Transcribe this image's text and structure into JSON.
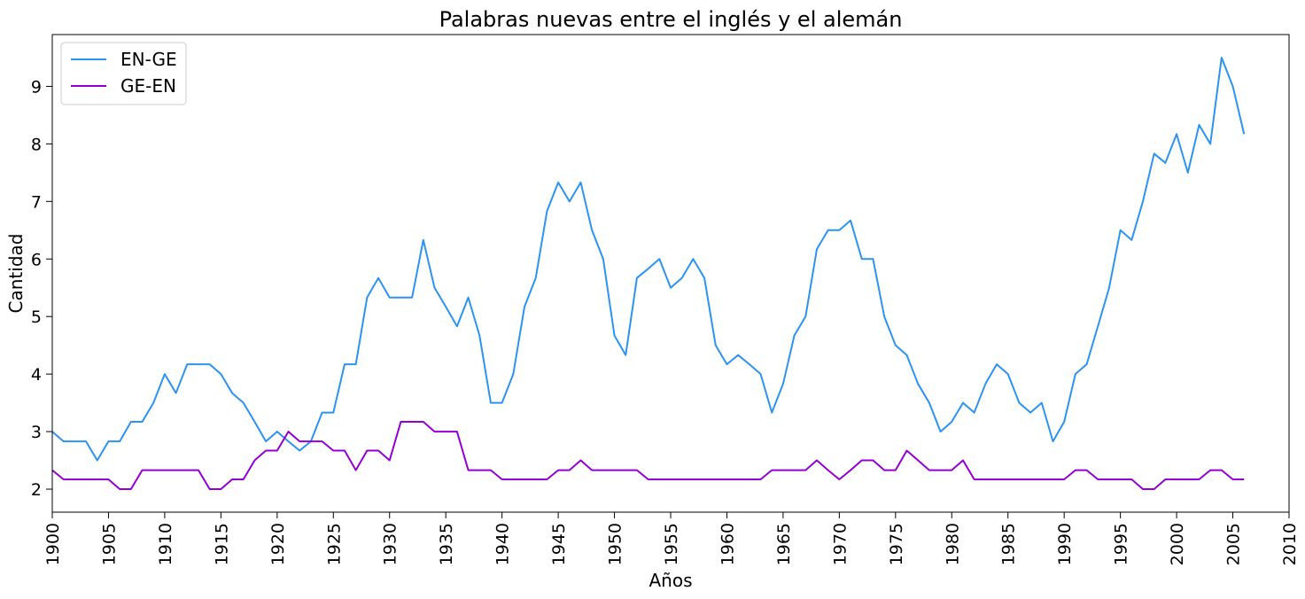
{
  "chart_data": {
    "type": "line",
    "title": "Palabras nuevas entre el inglés y el alemán",
    "xlabel": "Años",
    "ylabel": "Cantidad",
    "xlim": [
      1900,
      2010
    ],
    "ylim": [
      1.6,
      9.9
    ],
    "xticks": [
      1900,
      1905,
      1910,
      1915,
      1920,
      1925,
      1930,
      1935,
      1940,
      1945,
      1950,
      1955,
      1960,
      1965,
      1970,
      1975,
      1980,
      1985,
      1990,
      1995,
      2000,
      2005,
      2010
    ],
    "yticks": [
      2,
      3,
      4,
      5,
      6,
      7,
      8,
      9
    ],
    "grid": false,
    "legend": "top-left",
    "series": [
      {
        "name": "EN-GE",
        "color": "#2b93f0",
        "x": [
          1900,
          1901,
          1902,
          1903,
          1904,
          1905,
          1906,
          1907,
          1908,
          1909,
          1910,
          1911,
          1912,
          1913,
          1914,
          1915,
          1916,
          1917,
          1918,
          1919,
          1920,
          1921,
          1922,
          1923,
          1924,
          1925,
          1926,
          1927,
          1928,
          1929,
          1930,
          1931,
          1932,
          1933,
          1934,
          1935,
          1936,
          1937,
          1938,
          1939,
          1940,
          1941,
          1942,
          1943,
          1944,
          1945,
          1946,
          1947,
          1948,
          1949,
          1950,
          1951,
          1952,
          1953,
          1954,
          1955,
          1956,
          1957,
          1958,
          1959,
          1960,
          1961,
          1962,
          1963,
          1964,
          1965,
          1966,
          1967,
          1968,
          1969,
          1970,
          1971,
          1972,
          1973,
          1974,
          1975,
          1976,
          1977,
          1978,
          1979,
          1980,
          1981,
          1982,
          1983,
          1984,
          1985,
          1986,
          1987,
          1988,
          1989,
          1990,
          1991,
          1992,
          1993,
          1994,
          1995,
          1996,
          1997,
          1998,
          1999,
          2000,
          2001,
          2002,
          2003,
          2004,
          2005,
          2006
        ],
        "values": [
          3.0,
          2.83,
          2.83,
          2.83,
          2.5,
          2.83,
          2.83,
          3.17,
          3.17,
          3.5,
          4.0,
          3.67,
          4.17,
          4.17,
          4.17,
          4.0,
          3.67,
          3.5,
          3.17,
          2.83,
          3.0,
          2.83,
          2.67,
          2.83,
          3.33,
          3.33,
          4.17,
          4.17,
          5.33,
          5.67,
          5.33,
          5.33,
          5.33,
          6.33,
          5.5,
          5.17,
          4.83,
          5.33,
          4.67,
          3.5,
          3.5,
          4.0,
          5.17,
          5.67,
          6.83,
          7.33,
          7.0,
          7.33,
          6.5,
          6.0,
          4.67,
          4.33,
          5.67,
          5.83,
          6.0,
          5.5,
          5.67,
          6.0,
          5.67,
          4.5,
          4.17,
          4.33,
          4.17,
          4.0,
          3.33,
          3.83,
          4.67,
          5.0,
          6.17,
          6.5,
          6.5,
          6.67,
          6.0,
          6.0,
          5.0,
          4.5,
          4.33,
          3.83,
          3.5,
          3.0,
          3.17,
          3.5,
          3.33,
          3.83,
          4.17,
          4.0,
          3.5,
          3.33,
          3.5,
          2.83,
          3.17,
          4.0,
          4.17,
          4.83,
          5.5,
          6.5,
          6.33,
          7.0,
          7.83,
          7.67,
          8.17,
          7.5,
          8.33,
          8.0,
          9.5,
          9.0,
          8.17
        ]
      },
      {
        "name": "GE-EN",
        "color": "#9400d3",
        "x": [
          1900,
          1901,
          1902,
          1903,
          1904,
          1905,
          1906,
          1907,
          1908,
          1909,
          1910,
          1911,
          1912,
          1913,
          1914,
          1915,
          1916,
          1917,
          1918,
          1919,
          1920,
          1921,
          1922,
          1923,
          1924,
          1925,
          1926,
          1927,
          1928,
          1929,
          1930,
          1931,
          1932,
          1933,
          1934,
          1935,
          1936,
          1937,
          1938,
          1939,
          1940,
          1941,
          1942,
          1943,
          1944,
          1945,
          1946,
          1947,
          1948,
          1949,
          1950,
          1951,
          1952,
          1953,
          1954,
          1955,
          1956,
          1957,
          1958,
          1959,
          1960,
          1961,
          1962,
          1963,
          1964,
          1965,
          1966,
          1967,
          1968,
          1969,
          1970,
          1971,
          1972,
          1973,
          1974,
          1975,
          1976,
          1977,
          1978,
          1979,
          1980,
          1981,
          1982,
          1983,
          1984,
          1985,
          1986,
          1987,
          1988,
          1989,
          1990,
          1991,
          1992,
          1993,
          1994,
          1995,
          1996,
          1997,
          1998,
          1999,
          2000,
          2001,
          2002,
          2003,
          2004,
          2005,
          2006
        ],
        "values": [
          2.33,
          2.17,
          2.17,
          2.17,
          2.17,
          2.17,
          2.0,
          2.0,
          2.33,
          2.33,
          2.33,
          2.33,
          2.33,
          2.33,
          2.0,
          2.0,
          2.17,
          2.17,
          2.5,
          2.67,
          2.67,
          3.0,
          2.83,
          2.83,
          2.83,
          2.67,
          2.67,
          2.33,
          2.67,
          2.67,
          2.5,
          3.17,
          3.17,
          3.17,
          3.0,
          3.0,
          3.0,
          2.33,
          2.33,
          2.33,
          2.17,
          2.17,
          2.17,
          2.17,
          2.17,
          2.33,
          2.33,
          2.5,
          2.33,
          2.33,
          2.33,
          2.33,
          2.33,
          2.17,
          2.17,
          2.17,
          2.17,
          2.17,
          2.17,
          2.17,
          2.17,
          2.17,
          2.17,
          2.17,
          2.33,
          2.33,
          2.33,
          2.33,
          2.5,
          2.33,
          2.17,
          2.33,
          2.5,
          2.5,
          2.33,
          2.33,
          2.67,
          2.5,
          2.33,
          2.33,
          2.33,
          2.5,
          2.17,
          2.17,
          2.17,
          2.17,
          2.17,
          2.17,
          2.17,
          2.17,
          2.17,
          2.33,
          2.33,
          2.17,
          2.17,
          2.17,
          2.17,
          2.0,
          2.0,
          2.17,
          2.17,
          2.17,
          2.17,
          2.33,
          2.33,
          2.17,
          2.17
        ]
      }
    ]
  }
}
